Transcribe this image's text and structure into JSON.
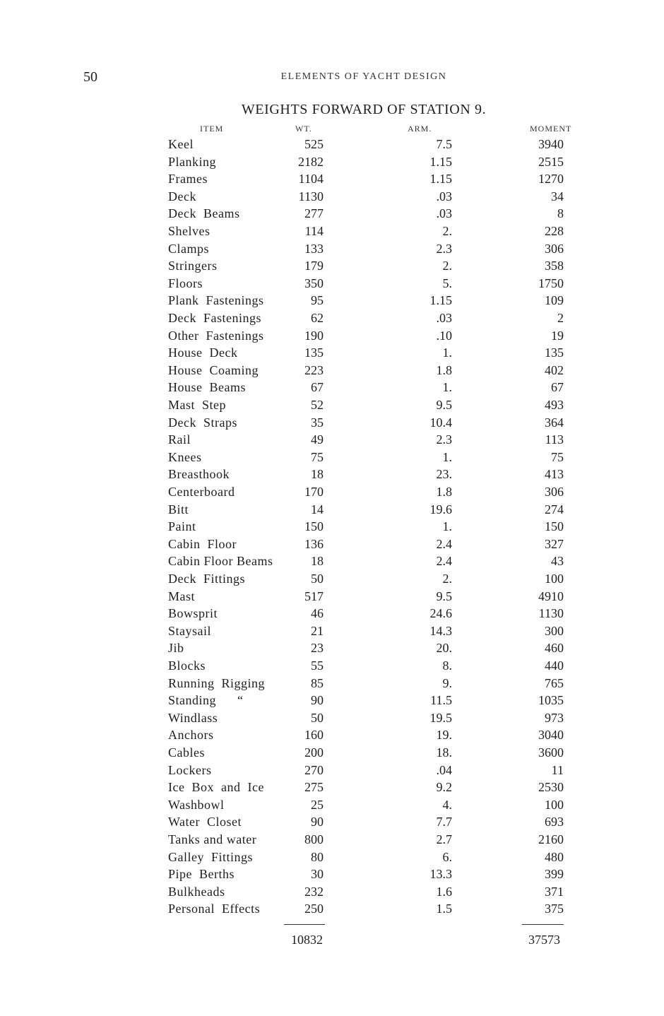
{
  "page_number": "50",
  "running_head": "ELEMENTS OF YACHT DESIGN",
  "table": {
    "title": "WEIGHTS FORWARD OF STATION 9.",
    "headers": {
      "item": "ITEM",
      "wt": "WT.",
      "arm": "ARM.",
      "moment": "MOMENT"
    },
    "rows": [
      [
        "Keel",
        "525",
        "7.5",
        "3940"
      ],
      [
        "Planking",
        "2182",
        "1.15",
        "2515"
      ],
      [
        "Frames",
        "1104",
        "1.15",
        "1270"
      ],
      [
        "Deck",
        "1130",
        ".03",
        "34"
      ],
      [
        "Deck  Beams",
        "277",
        ".03",
        "8"
      ],
      [
        "Shelves",
        "114",
        "2.",
        "228"
      ],
      [
        "Clamps",
        "133",
        "2.3",
        "306"
      ],
      [
        "Stringers",
        "179",
        "2.",
        "358"
      ],
      [
        "Floors",
        "350",
        "5.",
        "1750"
      ],
      [
        "Plank  Fastenings",
        "95",
        "1.15",
        "109"
      ],
      [
        "Deck  Fastenings",
        "62",
        ".03",
        "2"
      ],
      [
        "Other  Fastenings",
        "190",
        ".10",
        "19"
      ],
      [
        "House  Deck",
        "135",
        "1.",
        "135"
      ],
      [
        "House  Coaming",
        "223",
        "1.8",
        "402"
      ],
      [
        "House  Beams",
        "67",
        "1.",
        "67"
      ],
      [
        "Mast  Step",
        "52",
        "9.5",
        "493"
      ],
      [
        "Deck  Straps",
        "35",
        "10.4",
        "364"
      ],
      [
        "Rail",
        "49",
        "2.3",
        "113"
      ],
      [
        "Knees",
        "75",
        "1.",
        "75"
      ],
      [
        "Breasthook",
        "18",
        "23.",
        "413"
      ],
      [
        "Centerboard",
        "170",
        "1.8",
        "306"
      ],
      [
        "Bitt",
        "14",
        "19.6",
        "274"
      ],
      [
        "Paint",
        "150",
        "1.",
        "150"
      ],
      [
        "Cabin  Floor",
        "136",
        "2.4",
        "327"
      ],
      [
        "Cabin Floor Beams",
        "18",
        "2.4",
        "43"
      ],
      [
        "Deck  Fittings",
        "50",
        "2.",
        "100"
      ],
      [
        "Mast",
        "517",
        "9.5",
        "4910"
      ],
      [
        "Bowsprit",
        "46",
        "24.6",
        "1130"
      ],
      [
        "Staysail",
        "21",
        "14.3",
        "300"
      ],
      [
        "Jib",
        "23",
        "20.",
        "460"
      ],
      [
        "Blocks",
        "55",
        "8.",
        "440"
      ],
      [
        "Running  Rigging",
        "85",
        "9.",
        "765"
      ],
      [
        "Standing      “",
        "90",
        "11.5",
        "1035"
      ],
      [
        "Windlass",
        "50",
        "19.5",
        "973"
      ],
      [
        "Anchors",
        "160",
        "19.",
        "3040"
      ],
      [
        "Cables",
        "200",
        "18.",
        "3600"
      ],
      [
        "Lockers",
        "270",
        ".04",
        "11"
      ],
      [
        "Ice  Box  and  Ice",
        "275",
        "9.2",
        "2530"
      ],
      [
        "Washbowl",
        "25",
        "4.",
        "100"
      ],
      [
        "Water  Closet",
        "90",
        "7.7",
        "693"
      ],
      [
        "Tanks and water",
        "800",
        "2.7",
        "2160"
      ],
      [
        "Galley  Fittings",
        "80",
        "6.",
        "480"
      ],
      [
        "Pipe  Berths",
        "30",
        "13.3",
        "399"
      ],
      [
        "Bulkheads",
        "232",
        "1.6",
        "371"
      ],
      [
        "Personal  Effects",
        "250",
        "1.5",
        "375"
      ]
    ],
    "totals": {
      "wt": "10832",
      "moment": "37573"
    }
  }
}
